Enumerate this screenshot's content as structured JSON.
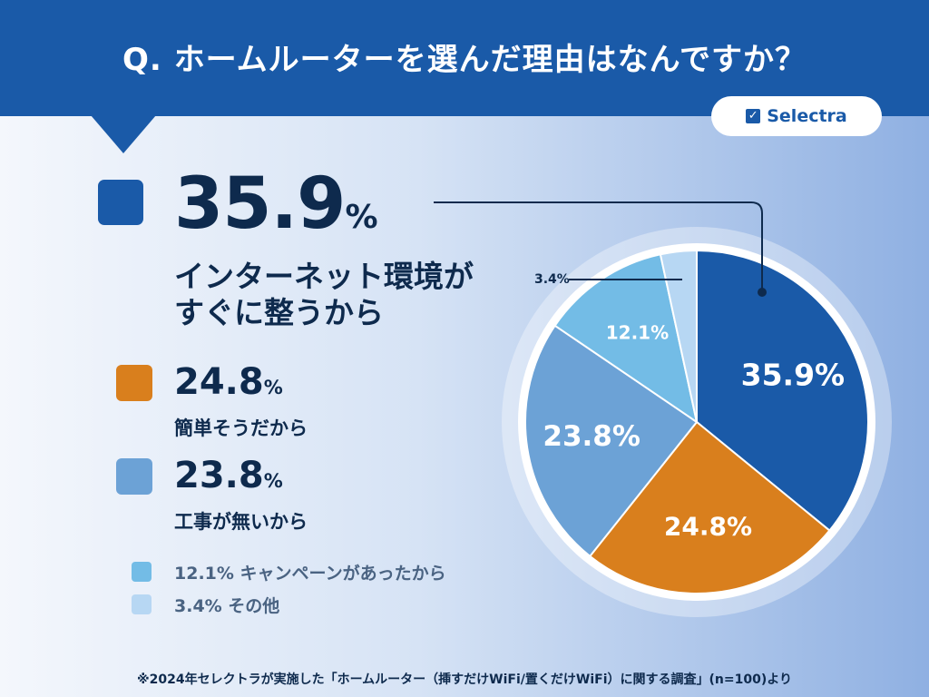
{
  "header": {
    "question": "Q.  ホームルーターを選んだ理由はなんですか？"
  },
  "brand": {
    "name": "Selectra",
    "icon": "checkbox-icon"
  },
  "chart_data": {
    "type": "pie",
    "title": "",
    "slices": [
      {
        "label": "インターネット環境がすぐに整うから",
        "value": 35.9,
        "value_label": "35.9%",
        "color": "#1a5aa8"
      },
      {
        "label": "簡単そうだから",
        "value": 24.8,
        "value_label": "24.8%",
        "color": "#d97f1d"
      },
      {
        "label": "工事が無いから",
        "value": 23.8,
        "value_label": "23.8%",
        "color": "#6ca2d6"
      },
      {
        "label": "キャンペーンがあったから",
        "value": 12.1,
        "value_label": "12.1%",
        "color": "#73bce6"
      },
      {
        "label": "その他",
        "value": 3.4,
        "value_label": "3.4%",
        "color": "#b7d7f3"
      }
    ]
  },
  "legend": {
    "main": {
      "pct": "35.9",
      "unit": "%",
      "line1": "インターネット環境が",
      "line2": "すぐに整うから"
    },
    "second": {
      "pct": "24.8",
      "unit": "%",
      "label": "簡単そうだから"
    },
    "third": {
      "pct": "23.8",
      "unit": "%",
      "label": "工事が無いから"
    },
    "fourth": {
      "label": "12.1% キャンペーンがあったから"
    },
    "fifth": {
      "label": "3.4% その他"
    }
  },
  "footnote": "※2024年セレクトラが実施した「ホームルーター（挿すだけWiFi/置くだけWiFi）に関する調査」(n=100)より"
}
